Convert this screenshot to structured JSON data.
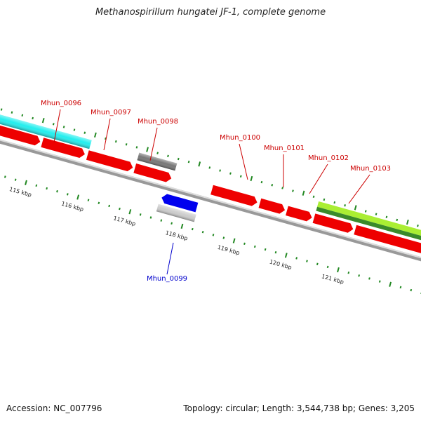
{
  "title": "Methanospirillum hungatei JF-1, complete genome",
  "footer": {
    "accession": "Accession: NC_007796",
    "summary": "Topology: circular; Length: 3,544,738 bp; Genes: 3,205"
  },
  "colors": {
    "gene_red": "#ee0000",
    "gene_cyan": "#22eeee",
    "gene_gray": "#777777",
    "gene_blue": "#0000ee",
    "gene_lightgray": "#cccccc",
    "gene_lime": "#aaee33",
    "gene_darkgreen": "#3a8a2a",
    "backbone": "#999999",
    "tick": "#228822",
    "label_red": "#cc0000",
    "label_blue": "#0000cc"
  },
  "scale_ticks": [
    {
      "kbp": 115,
      "label": "115 kbp"
    },
    {
      "kbp": 116,
      "label": "116 kbp"
    },
    {
      "kbp": 117,
      "label": "117 kbp"
    },
    {
      "kbp": 118,
      "label": "118 kbp"
    },
    {
      "kbp": 119,
      "label": "119 kbp"
    },
    {
      "kbp": 120,
      "label": "120 kbp"
    },
    {
      "kbp": 121,
      "label": "121 kbp"
    }
  ],
  "gene_labels": [
    {
      "id": "Mhun_0096",
      "strand": "forward"
    },
    {
      "id": "Mhun_0097",
      "strand": "forward"
    },
    {
      "id": "Mhun_0098",
      "strand": "forward"
    },
    {
      "id": "Mhun_0099",
      "strand": "reverse"
    },
    {
      "id": "Mhun_0100",
      "strand": "forward"
    },
    {
      "id": "Mhun_0101",
      "strand": "forward"
    },
    {
      "id": "Mhun_0102",
      "strand": "forward"
    },
    {
      "id": "Mhun_0103",
      "strand": "forward"
    }
  ]
}
